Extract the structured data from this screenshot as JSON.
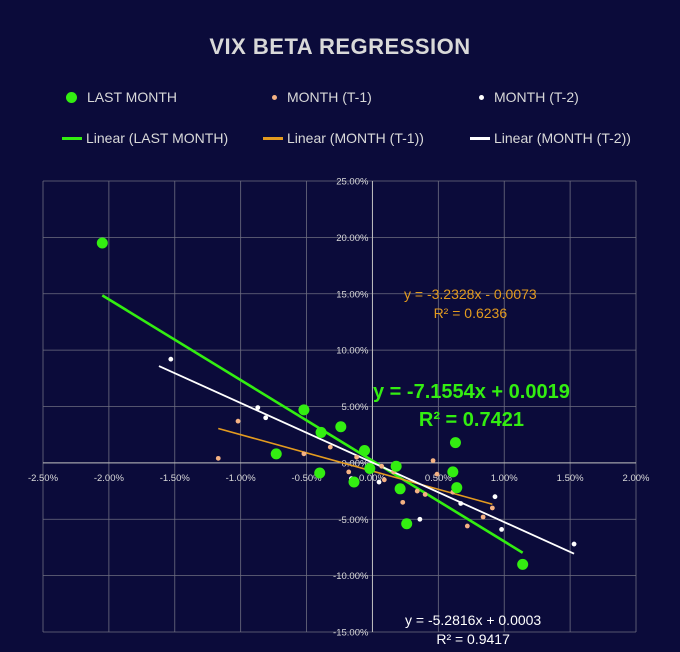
{
  "colors": {
    "background": "#0b0b3a",
    "text": "#d9d9d9",
    "grid": "#6e6e80",
    "axis": "#bfbfbf",
    "last_month": "#33ee11",
    "month_t1": "#f4b183",
    "month_t1_line": "#e39b1f",
    "month_t2": "#ffffff"
  },
  "chart_data": {
    "type": "scatter",
    "title": "VIX BETA REGRESSION",
    "xlabel": "",
    "ylabel": "",
    "xlim": [
      -0.025,
      0.02
    ],
    "ylim": [
      -0.15,
      0.25
    ],
    "x_ticks": [
      -0.025,
      -0.02,
      -0.015,
      -0.01,
      -0.005,
      0.0,
      0.005,
      0.01,
      0.015,
      0.02
    ],
    "x_tick_labels": [
      "-2.50%",
      "-2.00%",
      "-1.50%",
      "-1.00%",
      "-0.50%",
      "0.00%",
      "0.50%",
      "1.00%",
      "1.50%",
      "2.00%"
    ],
    "y_ticks": [
      0.25,
      0.2,
      0.15,
      0.1,
      0.05,
      0.0,
      -0.05,
      -0.1,
      -0.15
    ],
    "y_tick_labels": [
      "25.00%",
      "20.00%",
      "15.00%",
      "10.00%",
      "5.00%",
      "0.00%",
      "-5.00%",
      "-10.00%",
      "-15.00%"
    ],
    "grid": true,
    "legend": [
      {
        "label": "LAST MONTH",
        "kind": "marker",
        "series": "last_month"
      },
      {
        "label": "MONTH (T-1)",
        "kind": "marker",
        "series": "month_t1"
      },
      {
        "label": "MONTH (T-2)",
        "kind": "marker",
        "series": "month_t2"
      },
      {
        "label": "Linear (LAST MONTH)",
        "kind": "line",
        "series": "last_month"
      },
      {
        "label": "Linear (MONTH (T-1))",
        "kind": "line",
        "series": "month_t1"
      },
      {
        "label": "Linear (MONTH (T-2))",
        "kind": "line",
        "series": "month_t2"
      }
    ],
    "series": [
      {
        "name": "LAST MONTH",
        "key": "last_month",
        "points": [
          [
            -0.0205,
            0.195
          ],
          [
            -0.0052,
            0.047
          ],
          [
            -0.0039,
            0.027
          ],
          [
            -0.0024,
            0.032
          ],
          [
            -0.0073,
            0.008
          ],
          [
            -0.004,
            -0.009
          ],
          [
            -0.0014,
            -0.017
          ],
          [
            -0.0006,
            0.011
          ],
          [
            -0.0002,
            -0.005
          ],
          [
            0.0018,
            -0.003
          ],
          [
            0.0021,
            -0.023
          ],
          [
            0.0026,
            -0.054
          ],
          [
            0.0063,
            0.018
          ],
          [
            0.0061,
            -0.008
          ],
          [
            0.0064,
            -0.022
          ],
          [
            0.0114,
            -0.09
          ]
        ],
        "trend": {
          "slope": -7.1554,
          "intercept": 0.0019,
          "x_range": [
            -0.0205,
            0.0114
          ]
        },
        "equation": "y = -7.1554x + 0.0019",
        "r2": "R² = 0.7421"
      },
      {
        "name": "MONTH (T-1)",
        "key": "month_t1",
        "points": [
          [
            -0.0117,
            0.004
          ],
          [
            -0.0102,
            0.037
          ],
          [
            -0.0052,
            0.008
          ],
          [
            -0.0032,
            0.014
          ],
          [
            -0.0018,
            -0.008
          ],
          [
            -0.0012,
            0.005
          ],
          [
            0.0007,
            -0.003
          ],
          [
            0.0009,
            -0.015
          ],
          [
            0.0016,
            -0.008
          ],
          [
            0.0023,
            -0.035
          ],
          [
            0.0034,
            -0.025
          ],
          [
            0.004,
            -0.028
          ],
          [
            0.0049,
            -0.01
          ],
          [
            0.0046,
            0.002
          ],
          [
            0.0061,
            -0.026
          ],
          [
            0.0072,
            -0.056
          ],
          [
            0.0084,
            -0.048
          ],
          [
            0.0091,
            -0.04
          ]
        ],
        "trend": {
          "slope": -3.2328,
          "intercept": -0.0073,
          "x_range": [
            -0.0117,
            0.0091
          ]
        },
        "equation": "y = -3.2328x - 0.0073",
        "r2": "R² = 0.6236"
      },
      {
        "name": "MONTH (T-2)",
        "key": "month_t2",
        "points": [
          [
            -0.0153,
            0.092
          ],
          [
            -0.0087,
            0.049
          ],
          [
            -0.0081,
            0.04
          ],
          [
            -0.0016,
            -0.014
          ],
          [
            0.0005,
            -0.017
          ],
          [
            0.0036,
            -0.05
          ],
          [
            0.0067,
            -0.036
          ],
          [
            0.0093,
            -0.03
          ],
          [
            0.0098,
            -0.059
          ],
          [
            0.0153,
            -0.072
          ]
        ],
        "trend": {
          "slope": -5.2816,
          "intercept": 0.0003,
          "x_range": [
            -0.0162,
            0.0153
          ]
        },
        "equation": "y = -5.2816x + 0.0003",
        "r2": "R² = 0.9417"
      }
    ]
  }
}
